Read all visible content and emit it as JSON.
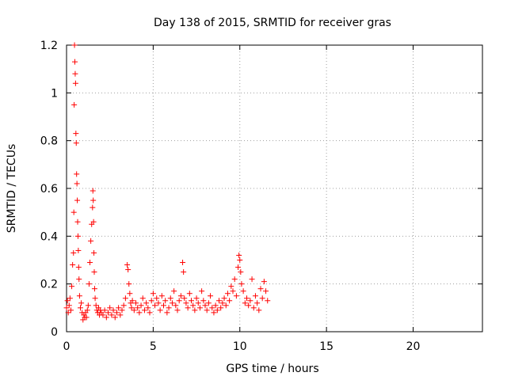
{
  "chart_data": {
    "type": "scatter",
    "title": "Day 138 of 2015, SRMTID for receiver gras",
    "xlabel": "GPS time / hours",
    "ylabel": "SRMTID / TECUs",
    "xlim": [
      0,
      24
    ],
    "ylim": [
      0,
      1.2
    ],
    "xticks": [
      0,
      5,
      10,
      15,
      20
    ],
    "yticks": [
      0,
      0.2,
      0.4,
      0.6,
      0.8,
      1,
      1.2
    ],
    "xtick_labels": [
      "0",
      "5",
      "10",
      "15",
      "20"
    ],
    "ytick_labels": [
      "0",
      "0.2",
      "0.4",
      "0.6",
      "0.8",
      "1",
      "1.2"
    ],
    "grid": true,
    "marker": "+",
    "series": [
      {
        "color": "#ff0000",
        "x": [
          0.0,
          0.05,
          0.1,
          0.15,
          0.2,
          0.25,
          0.3,
          0.35,
          0.4,
          0.42,
          0.44,
          0.46,
          0.48,
          0.5,
          0.52,
          0.54,
          0.56,
          0.58,
          0.6,
          0.62,
          0.64,
          0.66,
          0.68,
          0.7,
          0.72,
          0.75,
          0.8,
          0.85,
          0.9,
          0.95,
          1.0,
          1.05,
          1.1,
          1.15,
          1.2,
          1.25,
          1.3,
          1.35,
          1.4,
          1.45,
          1.5,
          1.52,
          1.54,
          1.56,
          1.58,
          1.6,
          1.62,
          1.65,
          1.7,
          1.75,
          1.8,
          1.85,
          1.9,
          1.95,
          2.0,
          2.1,
          2.2,
          2.3,
          2.4,
          2.5,
          2.6,
          2.7,
          2.8,
          2.9,
          3.0,
          3.1,
          3.2,
          3.3,
          3.4,
          3.5,
          3.55,
          3.6,
          3.65,
          3.7,
          3.75,
          3.8,
          3.9,
          4.0,
          4.1,
          4.2,
          4.3,
          4.4,
          4.5,
          4.6,
          4.7,
          4.8,
          4.9,
          5.0,
          5.1,
          5.2,
          5.3,
          5.4,
          5.5,
          5.6,
          5.7,
          5.8,
          5.9,
          6.0,
          6.1,
          6.2,
          6.3,
          6.4,
          6.5,
          6.6,
          6.7,
          6.75,
          6.8,
          6.9,
          7.0,
          7.1,
          7.2,
          7.3,
          7.4,
          7.5,
          7.6,
          7.7,
          7.8,
          7.9,
          8.0,
          8.1,
          8.2,
          8.3,
          8.4,
          8.5,
          8.6,
          8.7,
          8.8,
          8.9,
          9.0,
          9.1,
          9.2,
          9.3,
          9.4,
          9.5,
          9.6,
          9.7,
          9.8,
          9.9,
          9.95,
          10.0,
          10.05,
          10.1,
          10.2,
          10.3,
          10.4,
          10.5,
          10.6,
          10.7,
          10.8,
          10.9,
          11.0,
          11.1,
          11.2,
          11.3,
          11.4,
          11.5,
          11.6
        ],
        "y": [
          0.1,
          0.13,
          0.08,
          0.11,
          0.14,
          0.09,
          0.19,
          0.28,
          0.33,
          0.5,
          0.95,
          1.2,
          1.13,
          1.08,
          1.04,
          0.83,
          0.79,
          0.66,
          0.62,
          0.55,
          0.46,
          0.4,
          0.34,
          0.27,
          0.22,
          0.15,
          0.1,
          0.12,
          0.08,
          0.05,
          0.07,
          0.06,
          0.08,
          0.06,
          0.09,
          0.11,
          0.2,
          0.29,
          0.38,
          0.45,
          0.52,
          0.59,
          0.55,
          0.46,
          0.33,
          0.25,
          0.18,
          0.14,
          0.11,
          0.09,
          0.08,
          0.1,
          0.07,
          0.09,
          0.08,
          0.07,
          0.09,
          0.06,
          0.08,
          0.1,
          0.07,
          0.09,
          0.06,
          0.08,
          0.1,
          0.07,
          0.09,
          0.11,
          0.14,
          0.28,
          0.26,
          0.2,
          0.16,
          0.12,
          0.1,
          0.13,
          0.09,
          0.12,
          0.1,
          0.08,
          0.11,
          0.14,
          0.09,
          0.12,
          0.1,
          0.08,
          0.13,
          0.16,
          0.11,
          0.14,
          0.12,
          0.09,
          0.15,
          0.11,
          0.13,
          0.08,
          0.1,
          0.14,
          0.12,
          0.17,
          0.11,
          0.09,
          0.13,
          0.15,
          0.29,
          0.25,
          0.14,
          0.12,
          0.1,
          0.16,
          0.13,
          0.11,
          0.09,
          0.14,
          0.12,
          0.1,
          0.17,
          0.13,
          0.11,
          0.09,
          0.12,
          0.15,
          0.1,
          0.08,
          0.11,
          0.09,
          0.13,
          0.1,
          0.12,
          0.14,
          0.11,
          0.16,
          0.13,
          0.19,
          0.17,
          0.22,
          0.15,
          0.27,
          0.32,
          0.3,
          0.25,
          0.2,
          0.17,
          0.12,
          0.14,
          0.11,
          0.13,
          0.22,
          0.1,
          0.15,
          0.12,
          0.09,
          0.18,
          0.14,
          0.21,
          0.17,
          0.13
        ]
      }
    ]
  }
}
